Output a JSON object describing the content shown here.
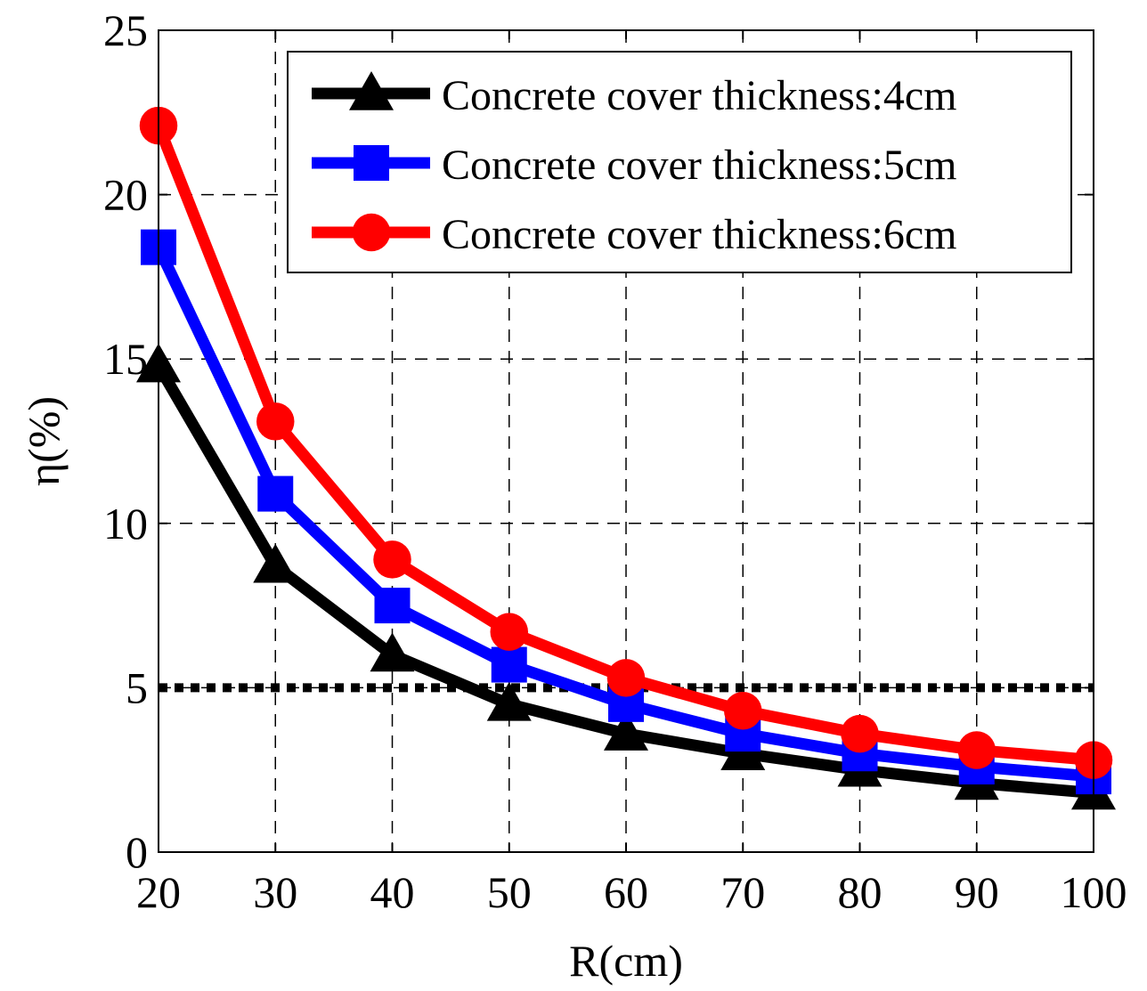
{
  "chart_data": {
    "type": "line",
    "title": "",
    "xlabel": "R(cm)",
    "ylabel": "η(%)",
    "x": [
      20,
      30,
      40,
      50,
      60,
      70,
      80,
      90,
      100
    ],
    "xlim": [
      20,
      100
    ],
    "ylim": [
      0,
      25
    ],
    "xticks": [
      "20",
      "30",
      "40",
      "50",
      "60",
      "70",
      "80",
      "90",
      "100"
    ],
    "yticks": [
      "0",
      "5",
      "10",
      "15",
      "20",
      "25"
    ],
    "grid": true,
    "legend_position": "top-right",
    "series": [
      {
        "name": "Concrete cover thickness:4cm",
        "color": "#000000",
        "marker": "triangle",
        "values": [
          14.8,
          8.7,
          6.0,
          4.5,
          3.6,
          3.0,
          2.5,
          2.1,
          1.8
        ]
      },
      {
        "name": "Concrete cover thickness:5cm",
        "color": "#0000ff",
        "marker": "square",
        "values": [
          18.4,
          10.9,
          7.5,
          5.7,
          4.5,
          3.6,
          3.0,
          2.6,
          2.3
        ]
      },
      {
        "name": "Concrete cover thickness:6cm",
        "color": "#ff0000",
        "marker": "circle",
        "values": [
          22.1,
          13.1,
          8.9,
          6.7,
          5.3,
          4.3,
          3.6,
          3.1,
          2.8
        ]
      }
    ],
    "reference_line": {
      "y": 5,
      "style": "dotted",
      "color": "#000000"
    }
  }
}
